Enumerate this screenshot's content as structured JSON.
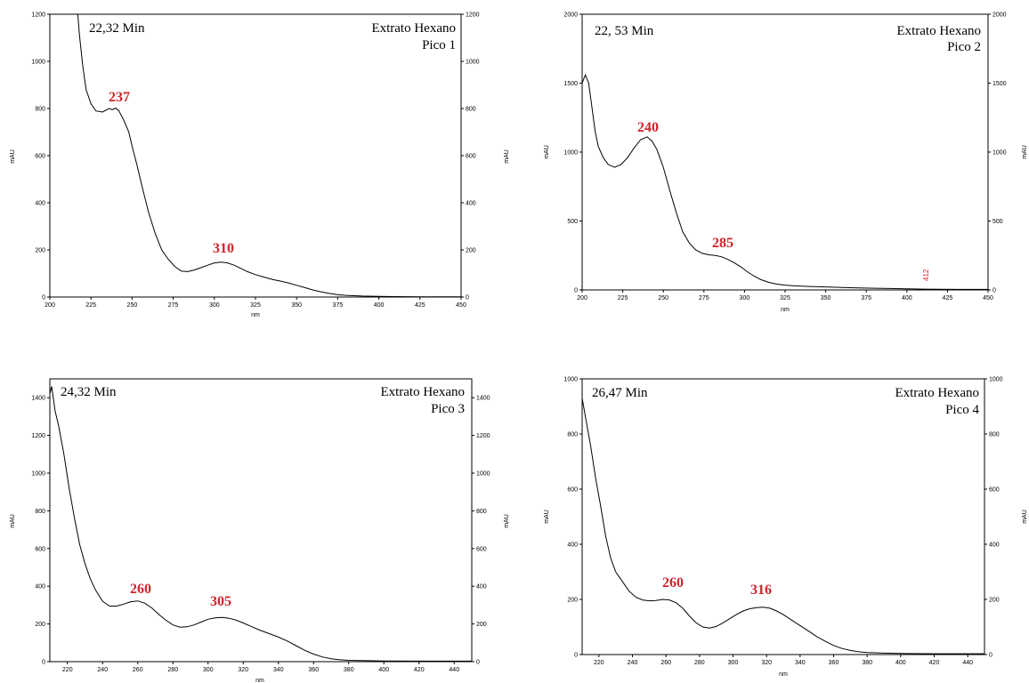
{
  "chart_data": [
    {
      "type": "line",
      "time_label": "22,32 Min",
      "sample": "Extrato Hexano",
      "peak": "Pico 1",
      "xlabel": "nm",
      "ylabel": "mAU",
      "xlim": [
        200,
        450
      ],
      "ylim": [
        0,
        1200
      ],
      "xticks": [
        "200",
        "225",
        "250",
        "275",
        "300",
        "325",
        "350",
        "375",
        "400",
        "425",
        "450"
      ],
      "yticks": [
        "0",
        "200",
        "400",
        "600",
        "800",
        "1000",
        "1200"
      ],
      "annotations": [
        {
          "text": "237",
          "x": 237,
          "y": 800
        },
        {
          "text": "310",
          "x": 310,
          "y": 150
        }
      ],
      "points": [
        [
          217,
          1200
        ],
        [
          218,
          1110
        ],
        [
          220,
          980
        ],
        [
          222,
          880
        ],
        [
          225,
          820
        ],
        [
          228,
          790
        ],
        [
          232,
          785
        ],
        [
          236,
          800
        ],
        [
          238,
          795
        ],
        [
          240,
          802
        ],
        [
          242,
          790
        ],
        [
          245,
          750
        ],
        [
          248,
          700
        ],
        [
          250,
          640
        ],
        [
          253,
          560
        ],
        [
          256,
          470
        ],
        [
          260,
          360
        ],
        [
          264,
          270
        ],
        [
          268,
          200
        ],
        [
          272,
          160
        ],
        [
          276,
          130
        ],
        [
          280,
          110
        ],
        [
          284,
          108
        ],
        [
          288,
          115
        ],
        [
          292,
          125
        ],
        [
          296,
          135
        ],
        [
          300,
          145
        ],
        [
          304,
          148
        ],
        [
          308,
          145
        ],
        [
          312,
          135
        ],
        [
          316,
          122
        ],
        [
          320,
          108
        ],
        [
          325,
          95
        ],
        [
          330,
          85
        ],
        [
          335,
          75
        ],
        [
          340,
          68
        ],
        [
          345,
          60
        ],
        [
          350,
          50
        ],
        [
          355,
          40
        ],
        [
          360,
          30
        ],
        [
          365,
          22
        ],
        [
          370,
          15
        ],
        [
          375,
          10
        ],
        [
          380,
          7
        ],
        [
          390,
          4
        ],
        [
          400,
          3
        ],
        [
          410,
          2
        ],
        [
          425,
          1
        ],
        [
          440,
          1
        ],
        [
          450,
          1
        ]
      ]
    },
    {
      "type": "line",
      "time_label": "22, 53 Min",
      "sample": "Extrato Hexano",
      "peak": "Pico 2",
      "xlabel": "nm",
      "ylabel": "mAU",
      "xlim": [
        200,
        450
      ],
      "ylim": [
        0,
        2000
      ],
      "xticks": [
        "200",
        "225",
        "250",
        "275",
        "300",
        "325",
        "350",
        "375",
        "400",
        "425",
        "450"
      ],
      "yticks": [
        "0",
        "500",
        "1000",
        "1500",
        "2000"
      ],
      "annotations": [
        {
          "text": "240",
          "x": 240,
          "y": 1110
        },
        {
          "text": "285",
          "x": 285,
          "y": 255
        },
        {
          "text": "412",
          "x": 412,
          "y": 10,
          "small": true
        }
      ],
      "points": [
        [
          200,
          1500
        ],
        [
          202,
          1560
        ],
        [
          204,
          1500
        ],
        [
          206,
          1330
        ],
        [
          208,
          1150
        ],
        [
          210,
          1040
        ],
        [
          213,
          960
        ],
        [
          216,
          910
        ],
        [
          220,
          890
        ],
        [
          224,
          910
        ],
        [
          228,
          960
        ],
        [
          232,
          1030
        ],
        [
          236,
          1090
        ],
        [
          240,
          1110
        ],
        [
          243,
          1080
        ],
        [
          246,
          1020
        ],
        [
          250,
          890
        ],
        [
          254,
          720
        ],
        [
          258,
          560
        ],
        [
          262,
          420
        ],
        [
          266,
          340
        ],
        [
          270,
          290
        ],
        [
          274,
          265
        ],
        [
          278,
          255
        ],
        [
          282,
          250
        ],
        [
          286,
          240
        ],
        [
          290,
          220
        ],
        [
          294,
          195
        ],
        [
          298,
          165
        ],
        [
          302,
          130
        ],
        [
          306,
          100
        ],
        [
          310,
          75
        ],
        [
          315,
          55
        ],
        [
          320,
          42
        ],
        [
          325,
          35
        ],
        [
          330,
          30
        ],
        [
          340,
          25
        ],
        [
          350,
          22
        ],
        [
          360,
          18
        ],
        [
          370,
          15
        ],
        [
          380,
          12
        ],
        [
          390,
          10
        ],
        [
          400,
          8
        ],
        [
          410,
          6
        ],
        [
          420,
          5
        ],
        [
          430,
          4
        ],
        [
          440,
          4
        ],
        [
          450,
          4
        ]
      ]
    },
    {
      "type": "line",
      "time_label": "24,32 Min",
      "sample": "Extrato Hexano",
      "peak": "Pico 3",
      "xlabel": "nm",
      "ylabel": "mAU",
      "xlim": [
        210,
        450
      ],
      "ylim": [
        0,
        1500
      ],
      "xticks": [
        "220",
        "240",
        "260",
        "280",
        "300",
        "320",
        "340",
        "360",
        "380",
        "400",
        "420",
        "440"
      ],
      "yticks": [
        "0",
        "200",
        "400",
        "600",
        "800",
        "1000",
        "1200",
        "1400"
      ],
      "annotations": [
        {
          "text": "260",
          "x": 260,
          "y": 320
        },
        {
          "text": "305",
          "x": 305,
          "y": 235
        }
      ],
      "points": [
        [
          210,
          1420
        ],
        [
          211,
          1460
        ],
        [
          213,
          1330
        ],
        [
          215,
          1250
        ],
        [
          218,
          1100
        ],
        [
          221,
          920
        ],
        [
          224,
          760
        ],
        [
          227,
          620
        ],
        [
          230,
          520
        ],
        [
          233,
          440
        ],
        [
          236,
          380
        ],
        [
          240,
          320
        ],
        [
          244,
          295
        ],
        [
          248,
          295
        ],
        [
          252,
          305
        ],
        [
          256,
          318
        ],
        [
          260,
          322
        ],
        [
          264,
          310
        ],
        [
          268,
          285
        ],
        [
          272,
          250
        ],
        [
          276,
          220
        ],
        [
          280,
          195
        ],
        [
          284,
          183
        ],
        [
          288,
          185
        ],
        [
          292,
          195
        ],
        [
          296,
          210
        ],
        [
          300,
          225
        ],
        [
          304,
          232
        ],
        [
          308,
          235
        ],
        [
          312,
          230
        ],
        [
          316,
          220
        ],
        [
          320,
          205
        ],
        [
          325,
          185
        ],
        [
          330,
          165
        ],
        [
          335,
          148
        ],
        [
          340,
          130
        ],
        [
          345,
          110
        ],
        [
          350,
          85
        ],
        [
          355,
          60
        ],
        [
          360,
          40
        ],
        [
          365,
          25
        ],
        [
          370,
          15
        ],
        [
          375,
          10
        ],
        [
          380,
          7
        ],
        [
          390,
          5
        ],
        [
          400,
          4
        ],
        [
          420,
          3
        ],
        [
          440,
          3
        ],
        [
          450,
          3
        ]
      ]
    },
    {
      "type": "line",
      "time_label": "26,47 Min",
      "sample": "Extrato Hexano",
      "peak": "Pico 4",
      "xlabel": "nm",
      "ylabel": "mAU",
      "xlim": [
        210,
        450
      ],
      "ylim": [
        0,
        1000
      ],
      "xticks": [
        "220",
        "240",
        "260",
        "280",
        "300",
        "320",
        "340",
        "360",
        "380",
        "400",
        "420",
        "440"
      ],
      "yticks": [
        "0",
        "200",
        "400",
        "600",
        "800",
        "1000"
      ],
      "annotations": [
        {
          "text": "260",
          "x": 260,
          "y": 200
        },
        {
          "text": "316",
          "x": 316,
          "y": 172
        }
      ],
      "points": [
        [
          210,
          930
        ],
        [
          212,
          860
        ],
        [
          215,
          760
        ],
        [
          218,
          640
        ],
        [
          221,
          540
        ],
        [
          224,
          430
        ],
        [
          227,
          350
        ],
        [
          230,
          300
        ],
        [
          234,
          265
        ],
        [
          238,
          230
        ],
        [
          242,
          208
        ],
        [
          246,
          198
        ],
        [
          250,
          195
        ],
        [
          254,
          196
        ],
        [
          258,
          200
        ],
        [
          262,
          198
        ],
        [
          266,
          188
        ],
        [
          270,
          168
        ],
        [
          274,
          140
        ],
        [
          278,
          115
        ],
        [
          282,
          100
        ],
        [
          286,
          96
        ],
        [
          290,
          102
        ],
        [
          294,
          115
        ],
        [
          298,
          130
        ],
        [
          302,
          145
        ],
        [
          306,
          158
        ],
        [
          310,
          166
        ],
        [
          314,
          170
        ],
        [
          318,
          172
        ],
        [
          322,
          168
        ],
        [
          326,
          158
        ],
        [
          330,
          145
        ],
        [
          335,
          125
        ],
        [
          340,
          105
        ],
        [
          345,
          85
        ],
        [
          350,
          65
        ],
        [
          355,
          48
        ],
        [
          360,
          33
        ],
        [
          365,
          22
        ],
        [
          370,
          15
        ],
        [
          375,
          10
        ],
        [
          380,
          7
        ],
        [
          390,
          5
        ],
        [
          400,
          4
        ],
        [
          420,
          3
        ],
        [
          440,
          3
        ],
        [
          450,
          3
        ]
      ]
    }
  ]
}
